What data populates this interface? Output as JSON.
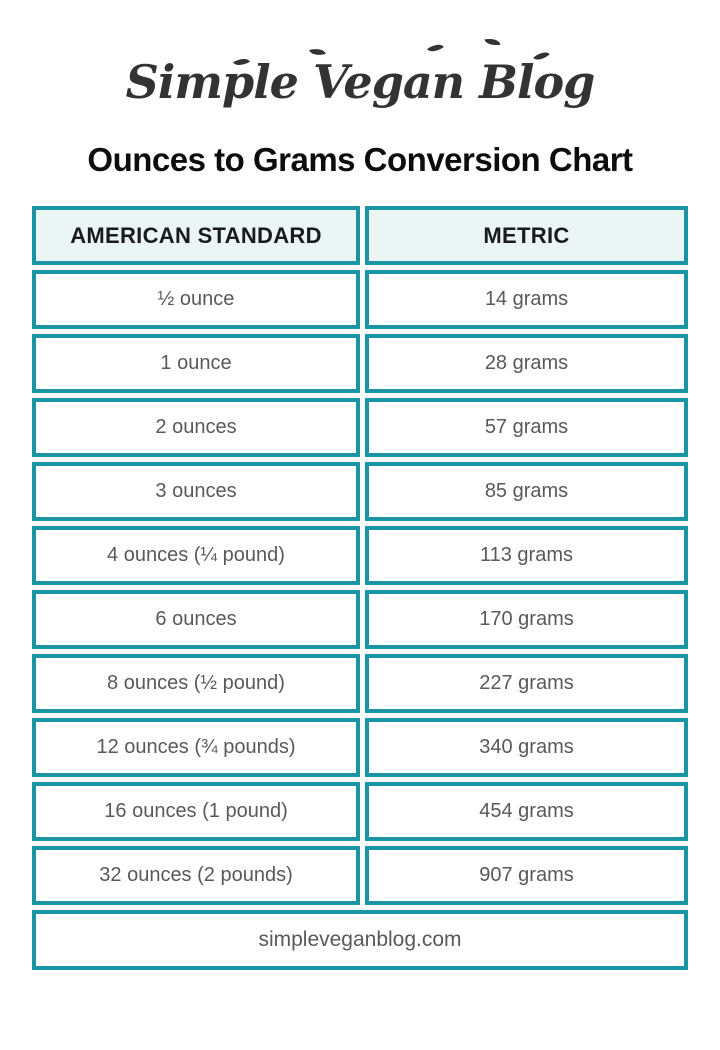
{
  "logo": {
    "text": "Simple Vegan Blog"
  },
  "title": "Ounces to Grams Conversion Chart",
  "table": {
    "headers": [
      "AMERICAN STANDARD",
      "METRIC"
    ],
    "rows": [
      [
        "½ ounce",
        "14 grams"
      ],
      [
        "1 ounce",
        "28 grams"
      ],
      [
        "2 ounces",
        "57 grams"
      ],
      [
        "3 ounces",
        "85 grams"
      ],
      [
        "4 ounces (¼ pound)",
        "113 grams"
      ],
      [
        "6 ounces",
        "170 grams"
      ],
      [
        "8 ounces (½ pound)",
        "227 grams"
      ],
      [
        "12 ounces (¾ pounds)",
        "340 grams"
      ],
      [
        "16 ounces (1 pound)",
        "454 grams"
      ],
      [
        "32 ounces (2 pounds)",
        "907 grams"
      ]
    ],
    "footer": "simpleveganblog.com"
  },
  "chart_data": {
    "type": "table",
    "title": "Ounces to Grams Conversion Chart",
    "columns": [
      "AMERICAN STANDARD",
      "METRIC"
    ],
    "categories": [
      "½ ounce",
      "1 ounce",
      "2 ounces",
      "3 ounces",
      "4 ounces (¼ pound)",
      "6 ounces",
      "8 ounces (½ pound)",
      "12 ounces (¾ pounds)",
      "16 ounces (1 pound)",
      "32 ounces (2 pounds)"
    ],
    "ounces_values": [
      0.5,
      1,
      2,
      3,
      4,
      6,
      8,
      12,
      16,
      32
    ],
    "grams_values": [
      14,
      28,
      57,
      85,
      113,
      170,
      227,
      340,
      454,
      907
    ],
    "metric_labels": [
      "14 grams",
      "28 grams",
      "57 grams",
      "85 grams",
      "113 grams",
      "170 grams",
      "227 grams",
      "340 grams",
      "454 grams",
      "907 grams"
    ],
    "source": "simpleveganblog.com"
  },
  "colors": {
    "accent_teal": "#1b94a6",
    "header_cell_bg": "#eaf5f4",
    "header_text": "#1b1b1b",
    "row_text": "#58595b",
    "title_text": "#0d0d0d",
    "logo_text": "#333333",
    "page_bg": "#ffffff"
  }
}
